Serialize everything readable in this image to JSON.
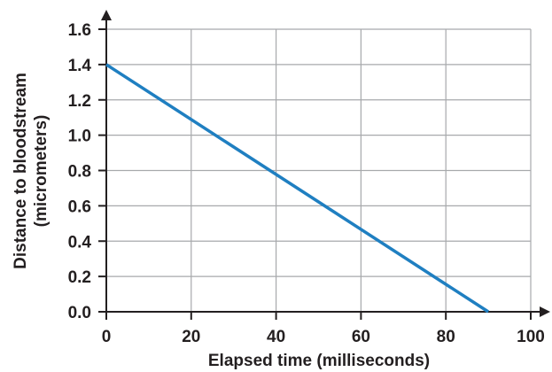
{
  "chart_data": {
    "type": "line",
    "xlabel": "Elapsed time (milliseconds)",
    "ylabel_lines": [
      "Distance to bloodstream",
      "(micrometers)"
    ],
    "xlim": [
      0,
      100
    ],
    "ylim": [
      0,
      1.6
    ],
    "x_ticks": [
      0,
      20,
      40,
      60,
      80,
      100
    ],
    "y_ticks": [
      0,
      0.2,
      0.4,
      0.6,
      0.8,
      1.0,
      1.2,
      1.4,
      1.6
    ],
    "x_tick_labels": [
      "0",
      "20",
      "40",
      "60",
      "80",
      "100"
    ],
    "y_tick_labels": [
      "0.0",
      "0.2",
      "0.4",
      "0.6",
      "0.8",
      "1.0",
      "1.2",
      "1.4",
      "1.6"
    ],
    "grid": true,
    "series": [
      {
        "x": [
          0,
          90
        ],
        "y": [
          1.4,
          0
        ]
      }
    ],
    "colors": {
      "line": "#1f7fc1",
      "grid": "#a7a9ac",
      "axis": "#231f20"
    }
  }
}
